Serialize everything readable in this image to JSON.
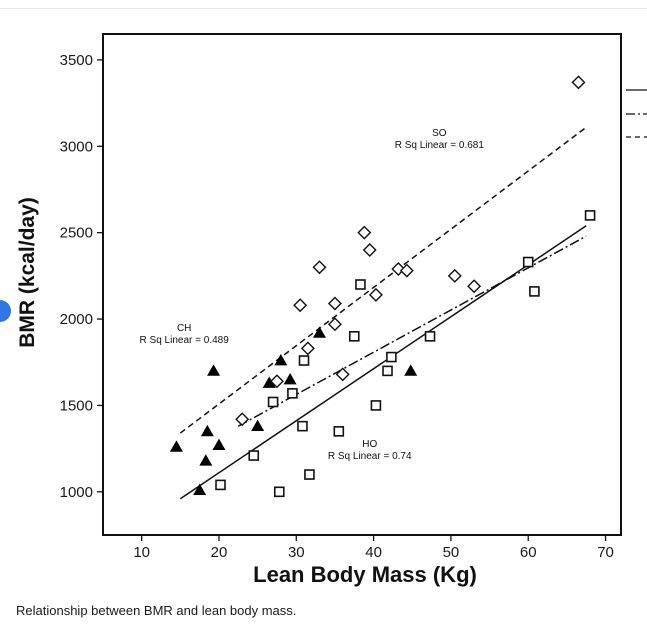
{
  "caption": "Relationship between BMR and lean body mass.",
  "chart_data": {
    "type": "scatter",
    "xlabel": "Lean Body Mass (Kg)",
    "ylabel": "BMR (kcal/day)",
    "xlim": [
      5,
      72
    ],
    "ylim": [
      750,
      3650
    ],
    "xticks": [
      10,
      20,
      30,
      40,
      50,
      60,
      70
    ],
    "yticks": [
      1000,
      1500,
      2000,
      2500,
      3000,
      3500
    ],
    "grid": false,
    "legend_position": "right (partially cropped)",
    "annotations": [
      {
        "key": "so",
        "group": "SO",
        "text": "R Sq Linear = 0.681",
        "x": 48.5,
        "y": 2990
      },
      {
        "key": "ch",
        "group": "CH",
        "text": "R Sq Linear = 0.489",
        "x": 15.5,
        "y": 1860
      },
      {
        "key": "ho",
        "group": "HO",
        "text": "R Sq Linear = 0.74",
        "x": 39.5,
        "y": 1190
      }
    ],
    "series": [
      {
        "key": "ch",
        "marker": "filled-triangle",
        "points": [
          [
            14.5,
            1260
          ],
          [
            17.5,
            1010
          ],
          [
            18.5,
            1350
          ],
          [
            18.3,
            1180
          ],
          [
            19.3,
            1700
          ],
          [
            20.0,
            1270
          ],
          [
            25.0,
            1380
          ],
          [
            26.5,
            1630
          ],
          [
            28.0,
            1760
          ],
          [
            29.2,
            1650
          ],
          [
            33.0,
            1920
          ],
          [
            44.8,
            1700
          ]
        ],
        "fit_line": {
          "style": "dash-dot",
          "points": [
            [
              22.5,
              1380
            ],
            [
              67.5,
              2480
            ]
          ]
        }
      },
      {
        "key": "so",
        "marker": "open-diamond",
        "points": [
          [
            23.0,
            1420
          ],
          [
            27.5,
            1640
          ],
          [
            30.5,
            2080
          ],
          [
            31.5,
            1830
          ],
          [
            33.0,
            2300
          ],
          [
            35.0,
            2090
          ],
          [
            35.0,
            1970
          ],
          [
            36.0,
            1680
          ],
          [
            38.8,
            2500
          ],
          [
            39.5,
            2400
          ],
          [
            40.3,
            2140
          ],
          [
            43.2,
            2290
          ],
          [
            44.3,
            2280
          ],
          [
            50.5,
            2250
          ],
          [
            53.0,
            2190
          ],
          [
            66.5,
            3370
          ]
        ],
        "fit_line": {
          "style": "dashed",
          "points": [
            [
              15.0,
              1340
            ],
            [
              67.5,
              3110
            ]
          ]
        }
      },
      {
        "key": "ho",
        "marker": "open-square",
        "points": [
          [
            20.2,
            1040
          ],
          [
            24.5,
            1210
          ],
          [
            27.0,
            1520
          ],
          [
            27.8,
            1000
          ],
          [
            29.5,
            1570
          ],
          [
            30.8,
            1380
          ],
          [
            31.0,
            1760
          ],
          [
            31.7,
            1100
          ],
          [
            35.5,
            1350
          ],
          [
            37.5,
            1900
          ],
          [
            38.3,
            2200
          ],
          [
            40.3,
            1500
          ],
          [
            41.8,
            1700
          ],
          [
            42.3,
            1780
          ],
          [
            47.3,
            1900
          ],
          [
            60.0,
            2330
          ],
          [
            60.8,
            2160
          ],
          [
            68.0,
            2600
          ]
        ],
        "fit_line": {
          "style": "solid",
          "points": [
            [
              15.0,
              960
            ],
            [
              67.5,
              2540
            ]
          ]
        }
      }
    ]
  }
}
